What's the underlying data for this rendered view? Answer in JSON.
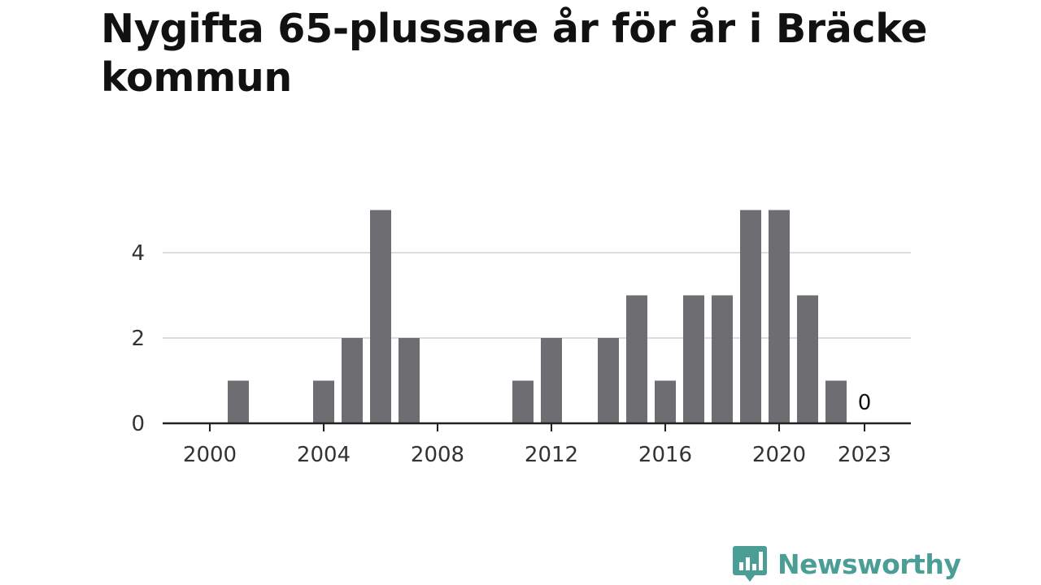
{
  "title": "Nygifta 65-plussare år för år i Bräcke kommun",
  "brand": {
    "name": "Newsworthy",
    "color": "#4a9e95"
  },
  "colors": {
    "bar": "#6e6d72",
    "grid": "#dddddd",
    "axis": "#222222"
  },
  "chart_data": {
    "type": "bar",
    "title": "Nygifta 65-plussare år för år i Bräcke kommun",
    "xlabel": "",
    "ylabel": "",
    "categories": [
      2000,
      2001,
      2002,
      2003,
      2004,
      2005,
      2006,
      2007,
      2008,
      2009,
      2010,
      2011,
      2012,
      2013,
      2014,
      2015,
      2016,
      2017,
      2018,
      2019,
      2020,
      2021,
      2022,
      2023
    ],
    "values": [
      0,
      1,
      0,
      0,
      1,
      2,
      5,
      2,
      0,
      0,
      0,
      1,
      2,
      0,
      2,
      3,
      1,
      3,
      3,
      5,
      5,
      3,
      1,
      0
    ],
    "x_tick_labels": [
      "2000",
      "2004",
      "2008",
      "2012",
      "2016",
      "2020",
      "2023"
    ],
    "y_ticks": [
      0,
      2,
      4
    ],
    "ylim": [
      0,
      5
    ],
    "grid": true,
    "annotations": [
      {
        "category": 2023,
        "text": "0"
      }
    ]
  }
}
